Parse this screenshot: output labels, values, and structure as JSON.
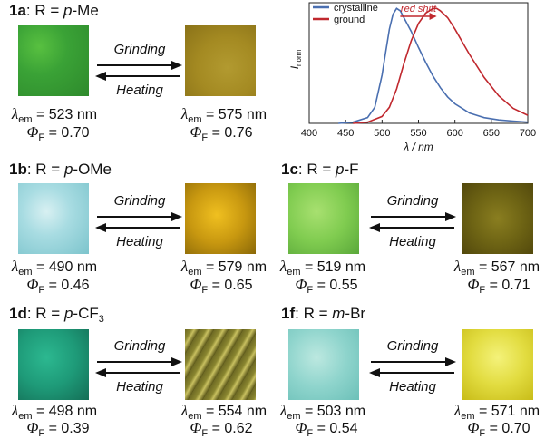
{
  "panels": [
    {
      "id": "1a",
      "label": "1a",
      "r_prefix": ": R = ",
      "r_italic": "p",
      "r_rest": "-Me",
      "r_sub": "",
      "left_color": "#3aa236",
      "right_color": "#a48a22",
      "grinding": "Grinding",
      "heating": "Heating",
      "lambda_left": "523",
      "lambda_right": "575",
      "phi_left": "0.70",
      "phi_right": "0.76"
    },
    {
      "id": "1b",
      "label": "1b",
      "r_prefix": ": R = ",
      "r_italic": "p",
      "r_rest": "-OMe",
      "r_sub": "",
      "left_color": "#a8dce2",
      "right_color": "#c89810",
      "grinding": "Grinding",
      "heating": "Heating",
      "lambda_left": "490",
      "lambda_right": "579",
      "phi_left": "0.46",
      "phi_right": "0.65"
    },
    {
      "id": "1c",
      "label": "1c",
      "r_prefix": ": R = ",
      "r_italic": "p",
      "r_rest": "-F",
      "r_sub": "",
      "left_color": "#80cc50",
      "right_color": "#6e6414",
      "grinding": "Grinding",
      "heating": "Heating",
      "lambda_left": "519",
      "lambda_right": "567",
      "phi_left": "0.55",
      "phi_right": "0.71"
    },
    {
      "id": "1d",
      "label": "1d",
      "r_prefix": ": R = ",
      "r_italic": "p",
      "r_rest": "-CF",
      "r_sub": "3",
      "left_color": "#1e9a78",
      "right_color": "#8a8630",
      "grinding": "Grinding",
      "heating": "Heating",
      "lambda_left": "498",
      "lambda_right": "554",
      "phi_left": "0.39",
      "phi_right": "0.62"
    },
    {
      "id": "1f",
      "label": "1f",
      "r_prefix": ": R = ",
      "r_italic": "m",
      "r_rest": "-Br",
      "r_sub": "",
      "left_color": "#8ed4cc",
      "right_color": "#e2dc40",
      "grinding": "Grinding",
      "heating": "Heating",
      "lambda_left": "503",
      "lambda_right": "571",
      "phi_left": "0.54",
      "phi_right": "0.70"
    }
  ],
  "units": {
    "nm": "nm",
    "lambda_sym": "λ",
    "lambda_sub": "em",
    "phi_sym": "Φ",
    "phi_sub": "F",
    "equals": " = "
  },
  "chart_data": {
    "type": "line",
    "xlabel": "λ / nm",
    "ylabel": "I",
    "ylabel_sub": "norm",
    "xlim": [
      400,
      700
    ],
    "ylim": [
      0,
      1.05
    ],
    "xticks": [
      400,
      450,
      500,
      550,
      600,
      650,
      700
    ],
    "legend_position": "top-left",
    "annotation": "red shift",
    "series": [
      {
        "name": "crystalline",
        "color": "#4a6fb0",
        "x": [
          440,
          460,
          480,
          490,
          500,
          505,
          510,
          515,
          520,
          525,
          530,
          540,
          550,
          560,
          570,
          580,
          590,
          600,
          620,
          640,
          660,
          680,
          700
        ],
        "y": [
          0.0,
          0.01,
          0.05,
          0.14,
          0.42,
          0.62,
          0.82,
          0.95,
          1.0,
          0.98,
          0.92,
          0.8,
          0.66,
          0.53,
          0.41,
          0.31,
          0.23,
          0.17,
          0.09,
          0.05,
          0.03,
          0.02,
          0.01
        ]
      },
      {
        "name": "ground",
        "color": "#c0282e",
        "x": [
          460,
          480,
          500,
          510,
          520,
          530,
          540,
          550,
          560,
          570,
          575,
          580,
          590,
          600,
          610,
          620,
          640,
          660,
          680,
          700
        ],
        "y": [
          0.0,
          0.01,
          0.06,
          0.14,
          0.3,
          0.52,
          0.72,
          0.87,
          0.96,
          1.0,
          1.0,
          0.98,
          0.92,
          0.82,
          0.71,
          0.6,
          0.4,
          0.24,
          0.13,
          0.07
        ]
      }
    ]
  }
}
